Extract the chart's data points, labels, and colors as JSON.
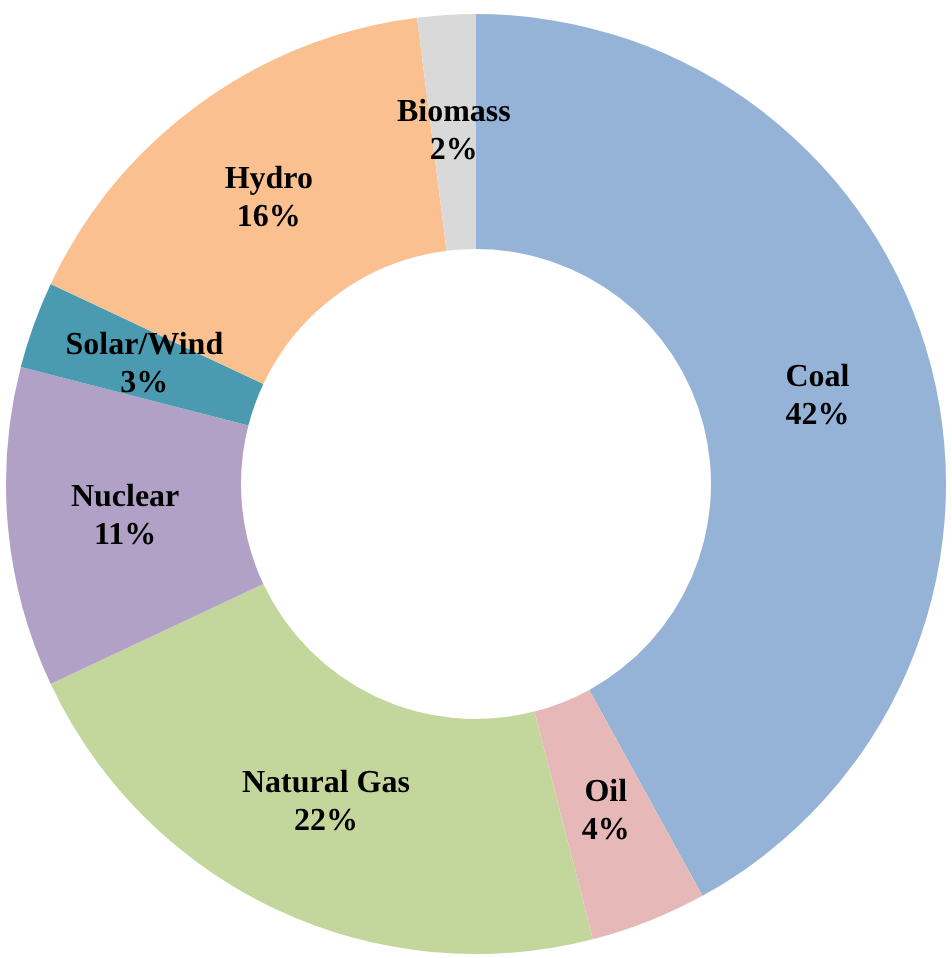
{
  "chart_data": {
    "type": "donut",
    "categories": [
      "Coal",
      "Oil",
      "Natural Gas",
      "Nuclear",
      "Solar/Wind",
      "Hydro",
      "Biomass"
    ],
    "values": [
      42,
      4,
      22,
      11,
      3,
      16,
      2
    ],
    "value_labels": [
      "42%",
      "4%",
      "22%",
      "11%",
      "3%",
      "16%",
      "2%"
    ],
    "colors": [
      "#95b3d7",
      "#e6b9b8",
      "#c3d69b",
      "#b2a1c7",
      "#4a9bb1",
      "#fac090",
      "#d9d9d9"
    ]
  }
}
